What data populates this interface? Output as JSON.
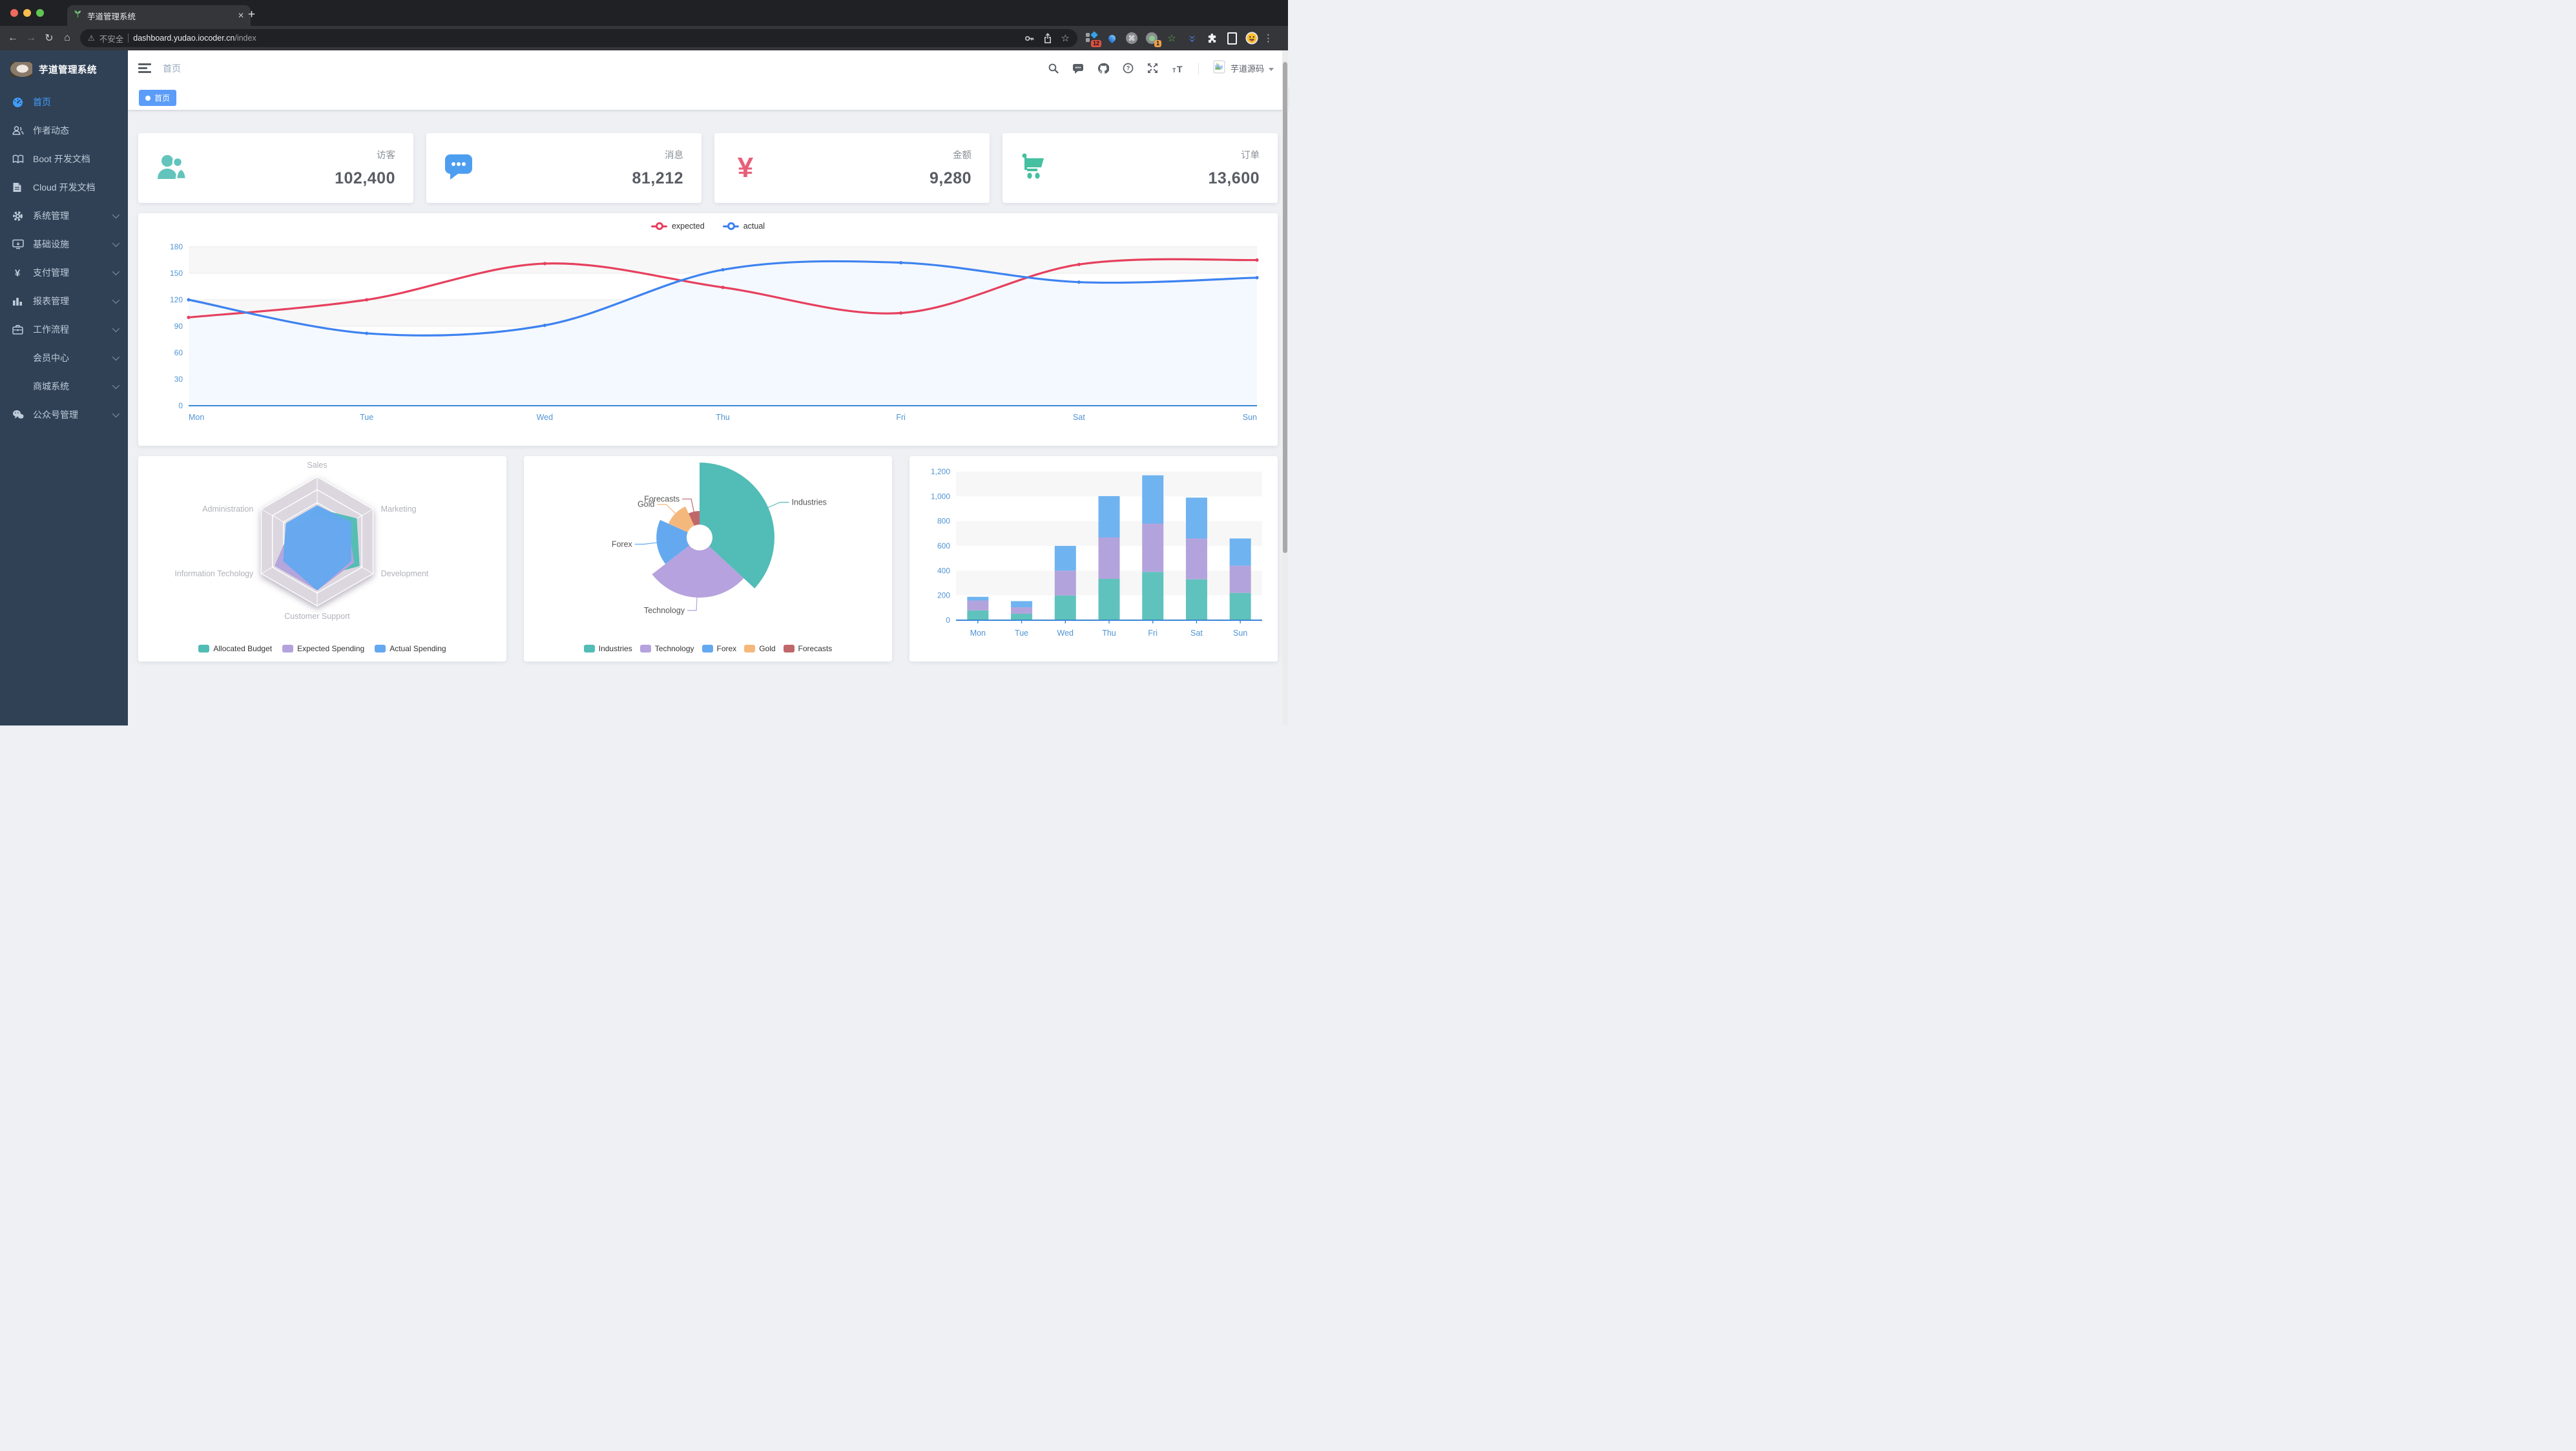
{
  "browser": {
    "tab_title": "芋道管理系统",
    "security_label": "不安全",
    "url_host": "dashboard.yudao.iocoder.cn",
    "url_path": "/index",
    "extension_badge_a": "12",
    "extension_badge_b": "1"
  },
  "sidebar": {
    "title": "芋道管理系统",
    "items": [
      {
        "key": "home",
        "label": "首页",
        "icon": "dashboard",
        "active": true,
        "arrow": false,
        "sub": false
      },
      {
        "key": "author-dynamics",
        "label": "作者动态",
        "icon": "people",
        "active": false,
        "arrow": false,
        "sub": false
      },
      {
        "key": "boot-docs",
        "label": "Boot 开发文档",
        "icon": "book",
        "active": false,
        "arrow": false,
        "sub": false
      },
      {
        "key": "cloud-docs",
        "label": "Cloud 开发文档",
        "icon": "doc",
        "active": false,
        "arrow": false,
        "sub": false
      },
      {
        "key": "system-management",
        "label": "系统管理",
        "icon": "gear",
        "active": false,
        "arrow": true,
        "sub": false
      },
      {
        "key": "infrastructure",
        "label": "基础设施",
        "icon": "monitor",
        "active": false,
        "arrow": true,
        "sub": false
      },
      {
        "key": "payment-management",
        "label": "支付管理",
        "icon": "yen",
        "active": false,
        "arrow": true,
        "sub": false
      },
      {
        "key": "report-management",
        "label": "报表管理",
        "icon": "chart",
        "active": false,
        "arrow": true,
        "sub": false
      },
      {
        "key": "workflow",
        "label": "工作流程",
        "icon": "briefcase",
        "active": false,
        "arrow": true,
        "sub": false
      },
      {
        "key": "member-center",
        "label": "会员中心",
        "icon": null,
        "active": false,
        "arrow": true,
        "sub": true
      },
      {
        "key": "mall-system",
        "label": "商城系统",
        "icon": null,
        "active": false,
        "arrow": true,
        "sub": true
      },
      {
        "key": "wechat-management",
        "label": "公众号管理",
        "icon": "wechat",
        "active": false,
        "arrow": true,
        "sub": false
      }
    ]
  },
  "header": {
    "breadcrumb": "首页",
    "username": "芋道源码"
  },
  "tags": {
    "active_tag": "首页"
  },
  "stats": [
    {
      "label": "访客",
      "value": "102,400",
      "color": "#62c4bc",
      "icon": "people"
    },
    {
      "label": "消息",
      "value": "81,212",
      "color": "#4d9ef0",
      "icon": "message"
    },
    {
      "label": "金额",
      "value": "9,280",
      "color": "#e85f78",
      "icon": "money"
    },
    {
      "label": "订单",
      "value": "13,600",
      "color": "#45c0a0",
      "icon": "cart"
    }
  ],
  "chart_data": [
    {
      "type": "line",
      "categories": [
        "Mon",
        "Tue",
        "Wed",
        "Thu",
        "Fri",
        "Sat",
        "Sun"
      ],
      "series": [
        {
          "name": "expected",
          "color": "#e6405e",
          "values": [
            100,
            120,
            161,
            134,
            105,
            160,
            165
          ]
        },
        {
          "name": "actual",
          "color": "#3d82f0",
          "values": [
            120,
            82,
            91,
            154,
            162,
            140,
            145
          ],
          "area": "#f3f8ff"
        }
      ],
      "ylim": [
        0,
        180
      ],
      "ytick": 30,
      "legend_position": "top",
      "tick_color": "#5094d4",
      "axis_color": "#3a87d2",
      "band_color": "#f7f7f7",
      "grid_color": "#e9e9e9"
    },
    {
      "type": "radar",
      "indicators": [
        "Sales",
        "Administration",
        "Information Techology",
        "Customer Support",
        "Development",
        "Marketing"
      ],
      "series": [
        {
          "name": "Allocated Budget",
          "color": "#52bcb4",
          "values": [
            0.5,
            0.35,
            0.6,
            0.55,
            0.75,
            0.7
          ]
        },
        {
          "name": "Expected Spending",
          "color": "#b3a3dc",
          "values": [
            0.4,
            0.45,
            0.75,
            0.75,
            0.65,
            0.55
          ]
        },
        {
          "name": "Actual Spending",
          "color": "#64a8f0",
          "values": [
            0.55,
            0.55,
            0.6,
            0.75,
            0.6,
            0.6
          ]
        }
      ],
      "grid_color": "#dcd7df",
      "label_color": "#b0b2b9",
      "legend_position": "bottom"
    },
    {
      "type": "pie",
      "rose": true,
      "slices": [
        {
          "name": "Industries",
          "value": 320,
          "color": "#52bcb6"
        },
        {
          "name": "Technology",
          "value": 240,
          "color": "#b6a2de"
        },
        {
          "name": "Forex",
          "value": 149,
          "color": "#64a9f0"
        },
        {
          "name": "Gold",
          "value": 100,
          "color": "#f5b87c"
        },
        {
          "name": "Forecasts",
          "value": 59,
          "color": "#c0676a"
        }
      ],
      "label_color": "#555555",
      "legend_position": "bottom"
    },
    {
      "type": "bar",
      "stacked": true,
      "categories": [
        "Mon",
        "Tue",
        "Wed",
        "Thu",
        "Fri",
        "Sat",
        "Sun"
      ],
      "series": [
        {
          "color": "#5fc2bd",
          "values": [
            79,
            52,
            200,
            334,
            390,
            330,
            220
          ]
        },
        {
          "color": "#b3a3dc",
          "values": [
            80,
            52,
            200,
            334,
            390,
            330,
            220
          ]
        },
        {
          "color": "#6fb3f0",
          "values": [
            30,
            50,
            200,
            334,
            390,
            330,
            220
          ]
        }
      ],
      "ylim": [
        0,
        1200
      ],
      "ytick": 200,
      "tick_color": "#5094d4",
      "axis_color": "#3a87d2",
      "band_color": "#f7f7f7"
    }
  ]
}
